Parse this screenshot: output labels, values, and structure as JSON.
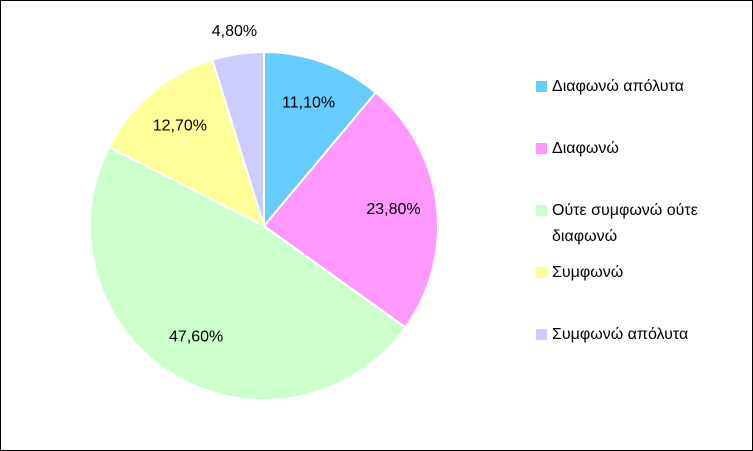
{
  "chart_data": {
    "type": "pie",
    "categories": [
      "Διαφωνώ απόλυτα",
      "Διαφωνώ",
      "Ούτε συμφωνώ ούτε διαφωνώ",
      "Συμφωνώ",
      "Συμφωνώ απόλυτα"
    ],
    "values": [
      11.1,
      23.8,
      47.6,
      12.7,
      4.8
    ],
    "value_labels": [
      "11,10%",
      "23,80%",
      "47,60%",
      "12,70%",
      "4,80%"
    ],
    "colors": [
      "#66ccff",
      "#ff99ff",
      "#ccffcc",
      "#ffff99",
      "#ccccff"
    ]
  }
}
